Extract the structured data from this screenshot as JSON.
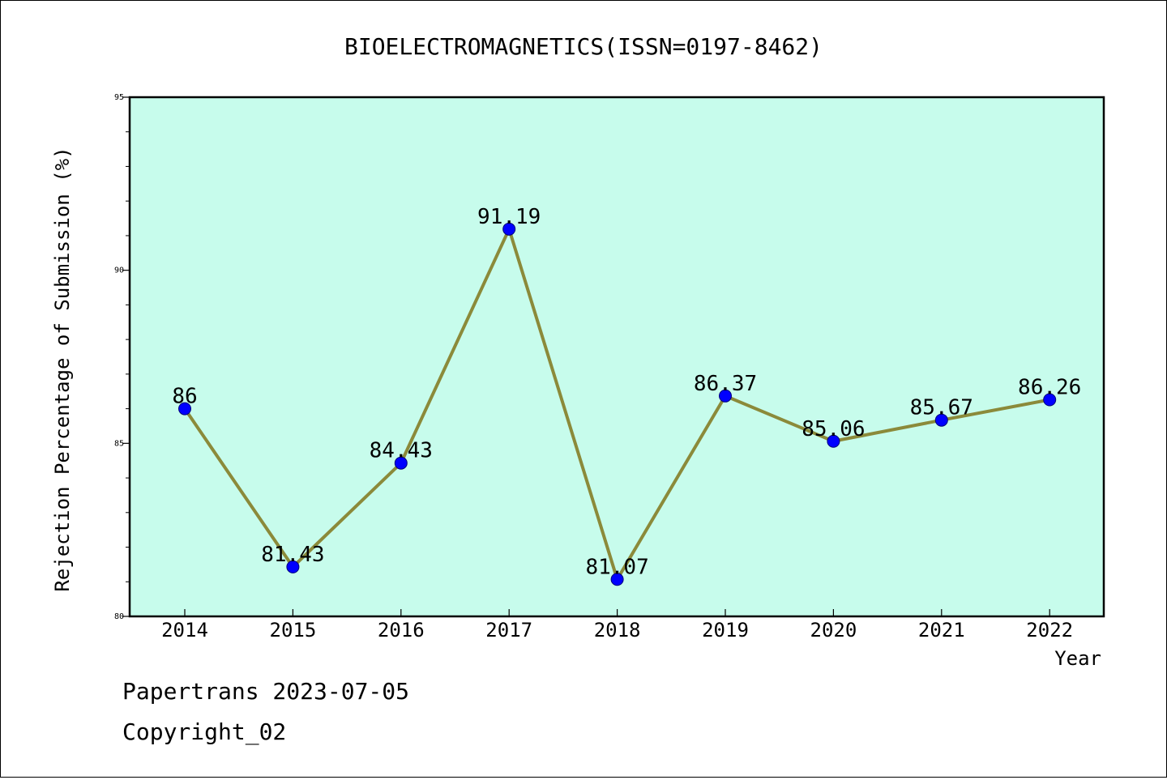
{
  "chart_data": {
    "type": "line",
    "title": "BIOELECTROMAGNETICS(ISSN=0197-8462)",
    "xlabel": "Year",
    "ylabel": "Rejection Percentage of Submission (%)",
    "categories": [
      "2014",
      "2015",
      "2016",
      "2017",
      "2018",
      "2019",
      "2020",
      "2021",
      "2022"
    ],
    "values": [
      86,
      81.43,
      84.43,
      91.19,
      81.07,
      86.37,
      85.06,
      85.67,
      86.26
    ],
    "data_labels": [
      "86",
      "81.43",
      "84.43",
      "91.19",
      "81.07",
      "86.37",
      "85.06",
      "85.67",
      "86.26"
    ],
    "ylim": [
      80,
      95
    ],
    "y_ticks": [
      80,
      85,
      90,
      95
    ],
    "y_tick_labels": [
      "80",
      "85",
      "90",
      "95"
    ],
    "grid": false,
    "legend": "none",
    "colors": {
      "plot_background": "#c7fcec",
      "line": "#8b8a3a",
      "marker": "#0000ff"
    }
  },
  "footer": {
    "line1": "Papertrans 2023-07-05",
    "line2": "Copyright_02"
  }
}
